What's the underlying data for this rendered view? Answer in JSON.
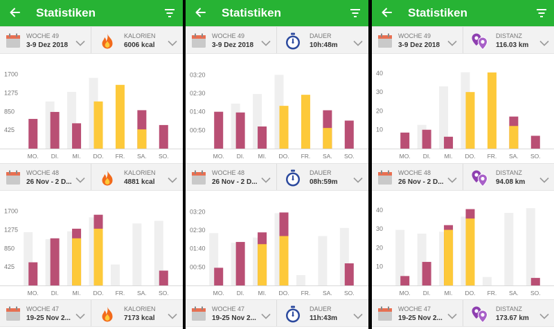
{
  "colors": {
    "accent": "#27b334",
    "past": "#b94f74",
    "current": "#fdc93a",
    "goal": "#efefef"
  },
  "days": [
    "MO.",
    "DI.",
    "MI.",
    "DO.",
    "FR.",
    "SA.",
    "SO."
  ],
  "panels": [
    {
      "title": "Statistiken",
      "metric": "kalorien",
      "icon": "flame-icon",
      "weeks": [
        {
          "week_label": "WOCHE 49",
          "date_range": "3-9 Dez 2018",
          "metric_label": "KALORIEN",
          "metric_value": "6006 kcal"
        },
        {
          "week_label": "WOCHE 48",
          "date_range": "26 Nov - 2 D...",
          "metric_label": "KALORIEN",
          "metric_value": "4881 kcal"
        },
        {
          "week_label": "WOCHE 47",
          "date_range": "19-25 Nov 2...",
          "metric_label": "KALORIEN",
          "metric_value": "7173 kcal"
        }
      ],
      "charts": [
        {
          "type": "bar",
          "x": [
            "MO.",
            "DI.",
            "MI.",
            "DO.",
            "FR.",
            "SA.",
            "SO."
          ],
          "yticks": [
            "1700",
            "1275",
            "850",
            "425"
          ],
          "tick_values": [
            1700,
            1275,
            850,
            425
          ],
          "ylim": [
            0,
            1900
          ],
          "series": [
            {
              "role": "goal",
              "values": [
                0,
                1080,
                1300,
                1620,
                0,
                0,
                0
              ]
            },
            {
              "role": "past",
              "values": [
                680,
                840,
                580,
                0,
                0,
                880,
                540
              ]
            },
            {
              "role": "current",
              "values": [
                0,
                0,
                0,
                1080,
                1460,
                440,
                0
              ]
            }
          ]
        },
        {
          "type": "bar",
          "x": [
            "MO.",
            "DI.",
            "MI.",
            "DO.",
            "FR.",
            "SA.",
            "SO."
          ],
          "yticks": [
            "1700",
            "1275",
            "850",
            "425"
          ],
          "tick_values": [
            1700,
            1275,
            850,
            425
          ],
          "ylim": [
            0,
            1900
          ],
          "series": [
            {
              "role": "goal",
              "values": [
                1220,
                1060,
                1240,
                1560,
                480,
                1420,
                1480
              ]
            },
            {
              "role": "past",
              "values": [
                530,
                1080,
                1300,
                1620,
                0,
                0,
                340
              ]
            },
            {
              "role": "current",
              "values": [
                0,
                0,
                1080,
                1300,
                0,
                0,
                0
              ]
            }
          ]
        }
      ]
    },
    {
      "title": "Statistiken",
      "metric": "dauer",
      "icon": "stopwatch-icon",
      "weeks": [
        {
          "week_label": "WOCHE 49",
          "date_range": "3-9 Dez 2018",
          "metric_label": "DAUER",
          "metric_value": "10h:48m"
        },
        {
          "week_label": "WOCHE 48",
          "date_range": "26 Nov - 2 D...",
          "metric_label": "DAUER",
          "metric_value": "08h:59m"
        },
        {
          "week_label": "WOCHE 47",
          "date_range": "19-25 Nov 2...",
          "metric_label": "DAUER",
          "metric_value": "11h:43m"
        }
      ],
      "charts": [
        {
          "type": "bar",
          "x": [
            "MO.",
            "DI.",
            "MI.",
            "DO.",
            "FR.",
            "SA.",
            "SO."
          ],
          "yticks": [
            "03:20",
            "02:30",
            "01:40",
            "00:50"
          ],
          "tick_values": [
            200,
            150,
            100,
            50
          ],
          "ylim": [
            0,
            225
          ],
          "series": [
            {
              "role": "goal",
              "values": [
                0,
                122,
                148,
                200,
                0,
                0,
                0
              ]
            },
            {
              "role": "past",
              "values": [
                100,
                98,
                60,
                0,
                0,
                104,
                76
              ]
            },
            {
              "role": "current",
              "values": [
                0,
                0,
                0,
                116,
                146,
                56,
                0
              ]
            }
          ]
        },
        {
          "type": "bar",
          "x": [
            "MO.",
            "DI.",
            "MI.",
            "DO.",
            "FR.",
            "SA.",
            "SO."
          ],
          "yticks": [
            "03:20",
            "02:30",
            "01:40",
            "00:50"
          ],
          "tick_values": [
            200,
            150,
            100,
            50
          ],
          "ylim": [
            0,
            225
          ],
          "series": [
            {
              "role": "goal",
              "values": [
                142,
                116,
                130,
                196,
                28,
                134,
                156
              ]
            },
            {
              "role": "past",
              "values": [
                48,
                118,
                144,
                198,
                0,
                0,
                60
              ]
            },
            {
              "role": "current",
              "values": [
                0,
                0,
                112,
                134,
                0,
                0,
                0
              ]
            }
          ]
        }
      ]
    },
    {
      "title": "Statistiken",
      "metric": "distanz",
      "icon": "map-pins-icon",
      "weeks": [
        {
          "week_label": "WOCHE 49",
          "date_range": "3-9 Dez 2018",
          "metric_label": "DISTANZ",
          "metric_value": "116.03 km"
        },
        {
          "week_label": "WOCHE 48",
          "date_range": "26 Nov - 2 D...",
          "metric_label": "DISTANZ",
          "metric_value": "94.08 km"
        },
        {
          "week_label": "WOCHE 47",
          "date_range": "19-25 Nov 2...",
          "metric_label": "DISTANZ",
          "metric_value": "173.67 km"
        }
      ],
      "charts": [
        {
          "type": "bar",
          "x": [
            "MO.",
            "DI.",
            "MI.",
            "DO.",
            "FR.",
            "SA.",
            "SO."
          ],
          "yticks": [
            "40",
            "30",
            "20",
            "10"
          ],
          "tick_values": [
            40,
            30,
            20,
            10
          ],
          "ylim": [
            0,
            44
          ],
          "series": [
            {
              "role": "goal",
              "values": [
                0,
                12.6,
                33,
                40.5,
                0,
                0,
                0
              ]
            },
            {
              "role": "past",
              "values": [
                8.5,
                10,
                6.3,
                0,
                0,
                17,
                6.8
              ]
            },
            {
              "role": "current",
              "values": [
                0,
                0,
                0,
                30,
                40.4,
                12,
                0
              ]
            }
          ]
        },
        {
          "type": "bar",
          "x": [
            "MO.",
            "DI.",
            "MI.",
            "DO.",
            "FR.",
            "SA.",
            "SO."
          ],
          "yticks": [
            "40",
            "30",
            "20",
            "10"
          ],
          "tick_values": [
            40,
            30,
            20,
            10
          ],
          "ylim": [
            0,
            44
          ],
          "series": [
            {
              "role": "goal",
              "values": [
                29.5,
                27.5,
                28.5,
                36.5,
                4.5,
                38.5,
                41
              ]
            },
            {
              "role": "past",
              "values": [
                5,
                12.5,
                32,
                40.5,
                0,
                0,
                4
              ]
            },
            {
              "role": "current",
              "values": [
                0,
                0,
                29.5,
                35.5,
                0,
                0,
                0
              ]
            }
          ]
        }
      ]
    }
  ]
}
